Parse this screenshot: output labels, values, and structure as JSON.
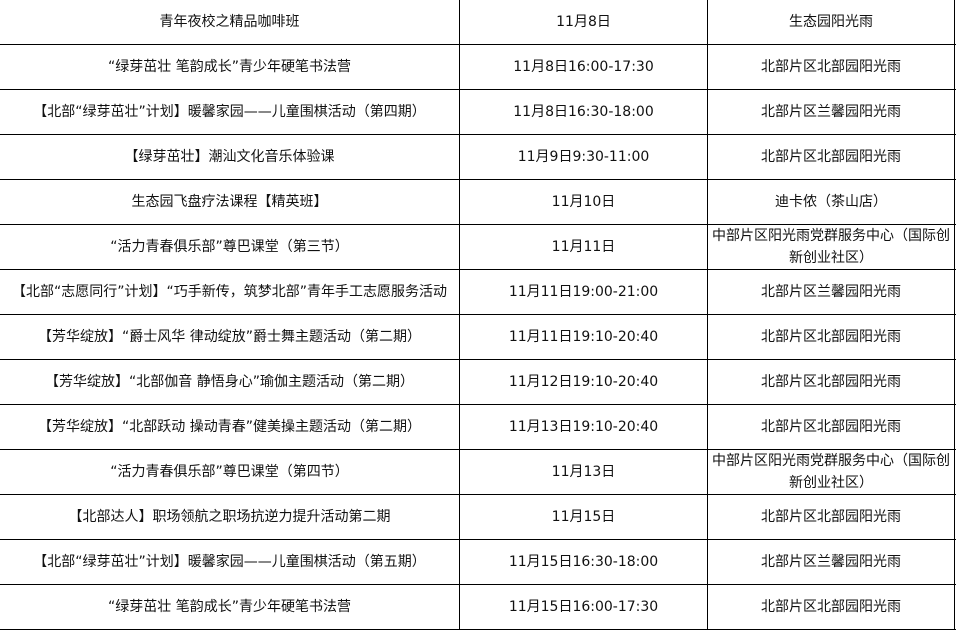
{
  "rows": [
    {
      "name": "青年夜校之精品咖啡班",
      "time": "11月8日",
      "place": "生态园阳光雨"
    },
    {
      "name": "“绿芽茁壮 笔韵成长”青少年硬笔书法营",
      "time": "11月8日16:00-17:30",
      "place": "北部片区北部园阳光雨"
    },
    {
      "name": "【北部“绿芽茁壮”计划】暖馨家园——儿童围棋活动（第四期）",
      "time": "11月8日16:30-18:00",
      "place": "北部片区兰馨园阳光雨"
    },
    {
      "name": "【绿芽茁壮】潮汕文化音乐体验课",
      "time": "11月9日9:30-11:00",
      "place": "北部片区北部园阳光雨"
    },
    {
      "name": "生态园飞盘疗法课程【精英班】",
      "time": "11月10日",
      "place": "迪卡侬（茶山店）"
    },
    {
      "name": "“活力青春俱乐部”尊巴课堂（第三节）",
      "time": "11月11日",
      "place": "中部片区阳光雨党群服务中心（国际创新创业社区）"
    },
    {
      "name": "【北部“志愿同行”计划】“巧手新传，筑梦北部”青年手工志愿服务活动",
      "time": "11月11日19:00-21:00",
      "place": "北部片区兰馨园阳光雨"
    },
    {
      "name": "【芳华绽放】“爵士风华 律动绽放”爵士舞主题活动（第二期）",
      "time": "11月11日19:10-20:40",
      "place": "北部片区北部园阳光雨"
    },
    {
      "name": "【芳华绽放】“北部伽音 静悟身心”瑜伽主题活动（第二期）",
      "time": "11月12日19:10-20:40",
      "place": "北部片区北部园阳光雨"
    },
    {
      "name": "【芳华绽放】“北部跃动 操动青春”健美操主题活动（第二期）",
      "time": "11月13日19:10-20:40",
      "place": "北部片区北部园阳光雨"
    },
    {
      "name": "“活力青春俱乐部”尊巴课堂（第四节）",
      "time": "11月13日",
      "place": "中部片区阳光雨党群服务中心（国际创新创业社区）"
    },
    {
      "name": "【北部达人】职场领航之职场抗逆力提升活动第二期",
      "time": "11月15日",
      "place": "北部片区北部园阳光雨"
    },
    {
      "name": "【北部“绿芽茁壮”计划】暖馨家园——儿童围棋活动（第五期）",
      "time": "11月15日16:30-18:00",
      "place": "北部片区兰馨园阳光雨"
    },
    {
      "name": "“绿芽茁壮 笔韵成长”青少年硬笔书法营",
      "time": "11月15日16:00-17:30",
      "place": "北部片区北部园阳光雨"
    }
  ]
}
